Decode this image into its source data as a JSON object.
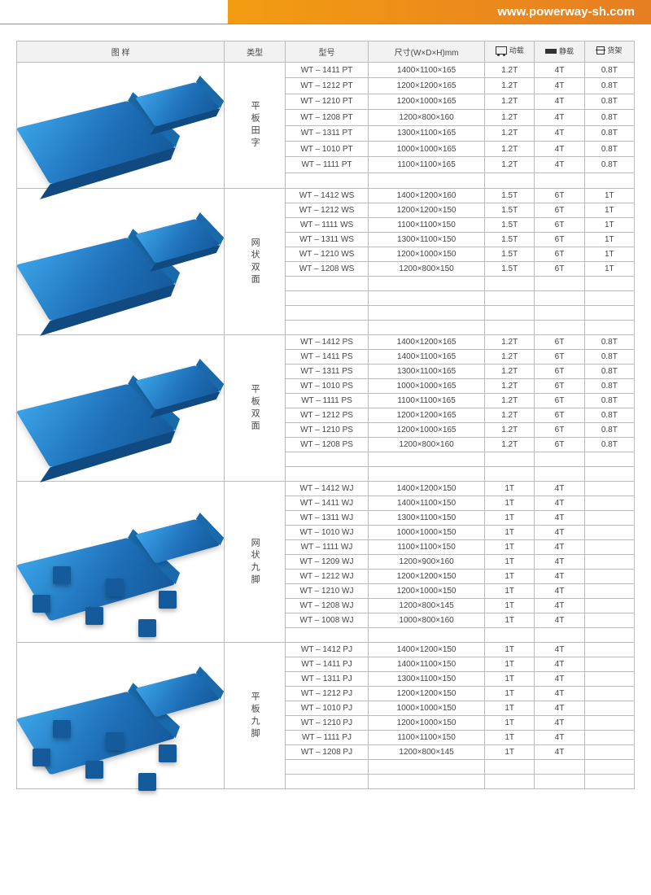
{
  "site_url": "www.powerway-sh.com",
  "columns": {
    "image": "图 样",
    "type": "类型",
    "model": "型号",
    "dimensions": "尺寸(W×D×H)mm",
    "dynamic": "动载",
    "static": "静载",
    "rack": "货架"
  },
  "colors": {
    "header_orange_start": "#f39c12",
    "header_orange_end": "#e67e22",
    "pallet_light": "#3ba4e8",
    "pallet_mid": "#1e6fb8",
    "pallet_dark": "#155a9a",
    "border": "#bbbbbb",
    "th_bg": "#f2f2f2",
    "text": "#444444"
  },
  "groups": [
    {
      "type_label": "平板田字",
      "surface": "flat",
      "base": "skid",
      "rows": [
        {
          "model": "WT – 1411  PT",
          "dim": "1400×1100×165",
          "dyn": "1.2T",
          "stat": "4T",
          "rack": "0.8T"
        },
        {
          "model": "WT – 1212  PT",
          "dim": "1200×1200×165",
          "dyn": "1.2T",
          "stat": "4T",
          "rack": "0.8T"
        },
        {
          "model": "WT – 1210  PT",
          "dim": "1200×1000×165",
          "dyn": "1.2T",
          "stat": "4T",
          "rack": "0.8T"
        },
        {
          "model": "WT – 1208  PT",
          "dim": "1200×800×160",
          "dyn": "1.2T",
          "stat": "4T",
          "rack": "0.8T"
        },
        {
          "model": "WT – 1311  PT",
          "dim": "1300×1100×165",
          "dyn": "1.2T",
          "stat": "4T",
          "rack": "0.8T"
        },
        {
          "model": "WT – 1010  PT",
          "dim": "1000×1000×165",
          "dyn": "1.2T",
          "stat": "4T",
          "rack": "0.8T"
        },
        {
          "model": "WT – 1111  PT",
          "dim": "1100×1100×165",
          "dyn": "1.2T",
          "stat": "4T",
          "rack": "0.8T"
        }
      ],
      "empty_rows": 1
    },
    {
      "type_label": "网状双面",
      "surface": "grid",
      "base": "skid",
      "rows": [
        {
          "model": "WT – 1412  WS",
          "dim": "1400×1200×160",
          "dyn": "1.5T",
          "stat": "6T",
          "rack": "1T"
        },
        {
          "model": "WT – 1212  WS",
          "dim": "1200×1200×150",
          "dyn": "1.5T",
          "stat": "6T",
          "rack": "1T"
        },
        {
          "model": "WT – 1111  WS",
          "dim": "1100×1100×150",
          "dyn": "1.5T",
          "stat": "6T",
          "rack": "1T"
        },
        {
          "model": "WT – 1311  WS",
          "dim": "1300×1100×150",
          "dyn": "1.5T",
          "stat": "6T",
          "rack": "1T"
        },
        {
          "model": "WT – 1210  WS",
          "dim": "1200×1000×150",
          "dyn": "1.5T",
          "stat": "6T",
          "rack": "1T"
        },
        {
          "model": "WT – 1208  WS",
          "dim": "1200×800×150",
          "dyn": "1.5T",
          "stat": "6T",
          "rack": "1T"
        }
      ],
      "empty_rows": 4
    },
    {
      "type_label": "平板双面",
      "surface": "flat",
      "base": "skid",
      "rows": [
        {
          "model": "WT – 1412  PS",
          "dim": "1400×1200×165",
          "dyn": "1.2T",
          "stat": "6T",
          "rack": "0.8T"
        },
        {
          "model": "WT – 1411  PS",
          "dim": "1400×1100×165",
          "dyn": "1.2T",
          "stat": "6T",
          "rack": "0.8T"
        },
        {
          "model": "WT – 1311  PS",
          "dim": "1300×1100×165",
          "dyn": "1.2T",
          "stat": "6T",
          "rack": "0.8T"
        },
        {
          "model": "WT – 1010  PS",
          "dim": "1000×1000×165",
          "dyn": "1.2T",
          "stat": "6T",
          "rack": "0.8T"
        },
        {
          "model": "WT – 1111  PS",
          "dim": "1100×1100×165",
          "dyn": "1.2T",
          "stat": "6T",
          "rack": "0.8T"
        },
        {
          "model": "WT – 1212  PS",
          "dim": "1200×1200×165",
          "dyn": "1.2T",
          "stat": "6T",
          "rack": "0.8T"
        },
        {
          "model": "WT – 1210  PS",
          "dim": "1200×1000×165",
          "dyn": "1.2T",
          "stat": "6T",
          "rack": "0.8T"
        },
        {
          "model": "WT – 1208  PS",
          "dim": "1200×800×160",
          "dyn": "1.2T",
          "stat": "6T",
          "rack": "0.8T"
        }
      ],
      "empty_rows": 2
    },
    {
      "type_label": "网状九脚",
      "surface": "grid",
      "base": "feet",
      "rows": [
        {
          "model": "WT – 1412  WJ",
          "dim": "1400×1200×150",
          "dyn": "1T",
          "stat": "4T",
          "rack": ""
        },
        {
          "model": "WT – 1411  WJ",
          "dim": "1400×1100×150",
          "dyn": "1T",
          "stat": "4T",
          "rack": ""
        },
        {
          "model": "WT – 1311  WJ",
          "dim": "1300×1100×150",
          "dyn": "1T",
          "stat": "4T",
          "rack": ""
        },
        {
          "model": "WT – 1010  WJ",
          "dim": "1000×1000×150",
          "dyn": "1T",
          "stat": "4T",
          "rack": ""
        },
        {
          "model": "WT – 1111  WJ",
          "dim": "1100×1100×150",
          "dyn": "1T",
          "stat": "4T",
          "rack": ""
        },
        {
          "model": "WT – 1209  WJ",
          "dim": "1200×900×160",
          "dyn": "1T",
          "stat": "4T",
          "rack": ""
        },
        {
          "model": "WT – 1212  WJ",
          "dim": "1200×1200×150",
          "dyn": "1T",
          "stat": "4T",
          "rack": ""
        },
        {
          "model": "WT – 1210  WJ",
          "dim": "1200×1000×150",
          "dyn": "1T",
          "stat": "4T",
          "rack": ""
        },
        {
          "model": "WT – 1208  WJ",
          "dim": "1200×800×145",
          "dyn": "1T",
          "stat": "4T",
          "rack": ""
        },
        {
          "model": "WT – 1008  WJ",
          "dim": "1000×800×160",
          "dyn": "1T",
          "stat": "4T",
          "rack": ""
        }
      ],
      "empty_rows": 1
    },
    {
      "type_label": "平板九脚",
      "surface": "flat",
      "base": "feet",
      "rows": [
        {
          "model": "WT – 1412  PJ",
          "dim": "1400×1200×150",
          "dyn": "1T",
          "stat": "4T",
          "rack": ""
        },
        {
          "model": "WT – 1411  PJ",
          "dim": "1400×1100×150",
          "dyn": "1T",
          "stat": "4T",
          "rack": ""
        },
        {
          "model": "WT – 1311  PJ",
          "dim": "1300×1100×150",
          "dyn": "1T",
          "stat": "4T",
          "rack": ""
        },
        {
          "model": "WT – 1212  PJ",
          "dim": "1200×1200×150",
          "dyn": "1T",
          "stat": "4T",
          "rack": ""
        },
        {
          "model": "WT – 1010  PJ",
          "dim": "1000×1000×150",
          "dyn": "1T",
          "stat": "4T",
          "rack": ""
        },
        {
          "model": "WT – 1210  PJ",
          "dim": "1200×1000×150",
          "dyn": "1T",
          "stat": "4T",
          "rack": ""
        },
        {
          "model": "WT – 1111  PJ",
          "dim": "1100×1100×150",
          "dyn": "1T",
          "stat": "4T",
          "rack": ""
        },
        {
          "model": "WT – 1208  PJ",
          "dim": "1200×800×145",
          "dyn": "1T",
          "stat": "4T",
          "rack": ""
        }
      ],
      "empty_rows": 2
    }
  ]
}
